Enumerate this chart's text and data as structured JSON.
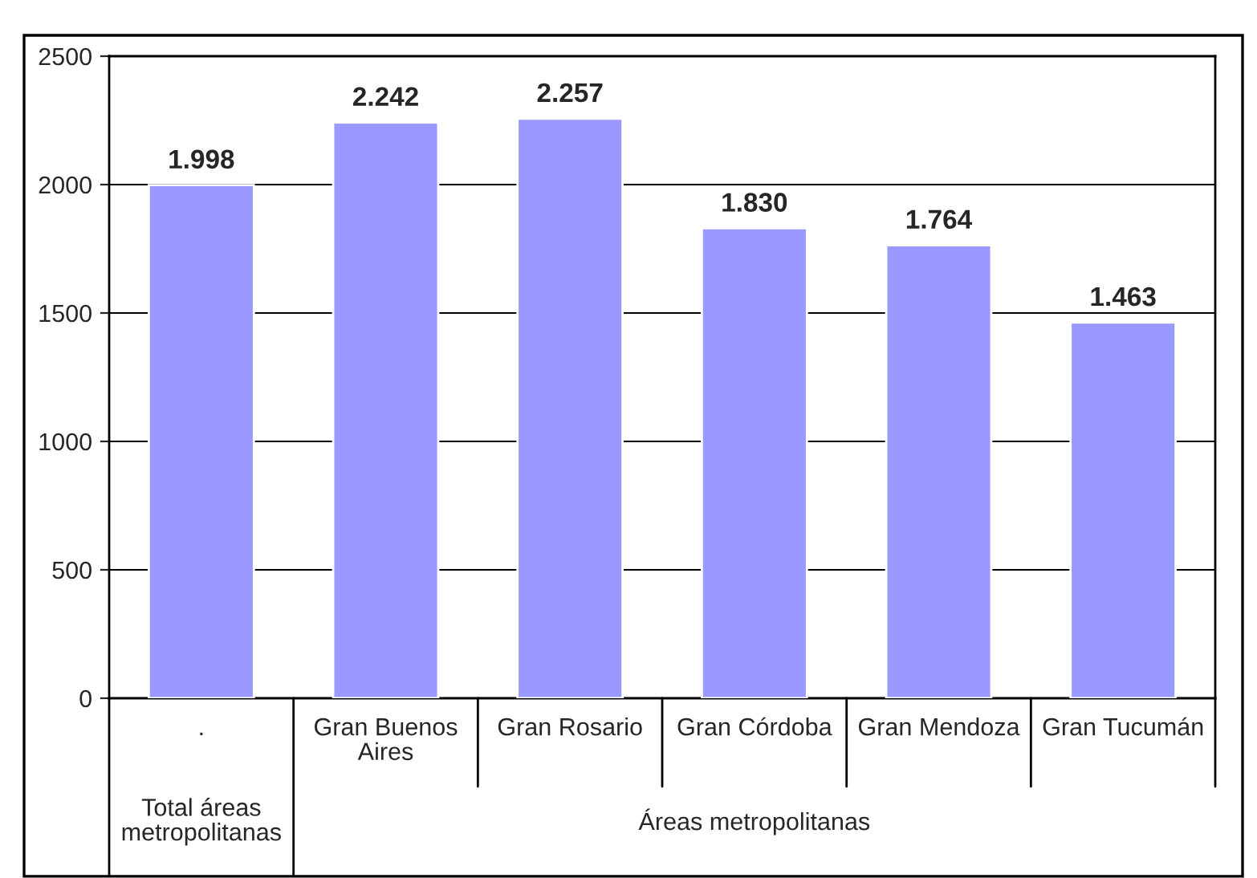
{
  "chart_data": {
    "type": "bar",
    "categories": [
      ".",
      "Gran Buenos\nAires",
      "Gran Rosario",
      "Gran Córdoba",
      "Gran Mendoza",
      "Gran Tucumán"
    ],
    "values": [
      1998,
      2242,
      2257,
      1830,
      1764,
      1463
    ],
    "value_labels": [
      "1.998",
      "2.242",
      "2.257",
      "1.830",
      "1.764",
      "1.463"
    ],
    "color": "#9999ff",
    "ylim": [
      0,
      2500
    ],
    "yticks": [
      0,
      500,
      1000,
      1500,
      2000,
      2500
    ],
    "grid": "y",
    "annotations": [
      "Total áreas\nmetropolitanas",
      "Áreas metropolitanas"
    ]
  }
}
